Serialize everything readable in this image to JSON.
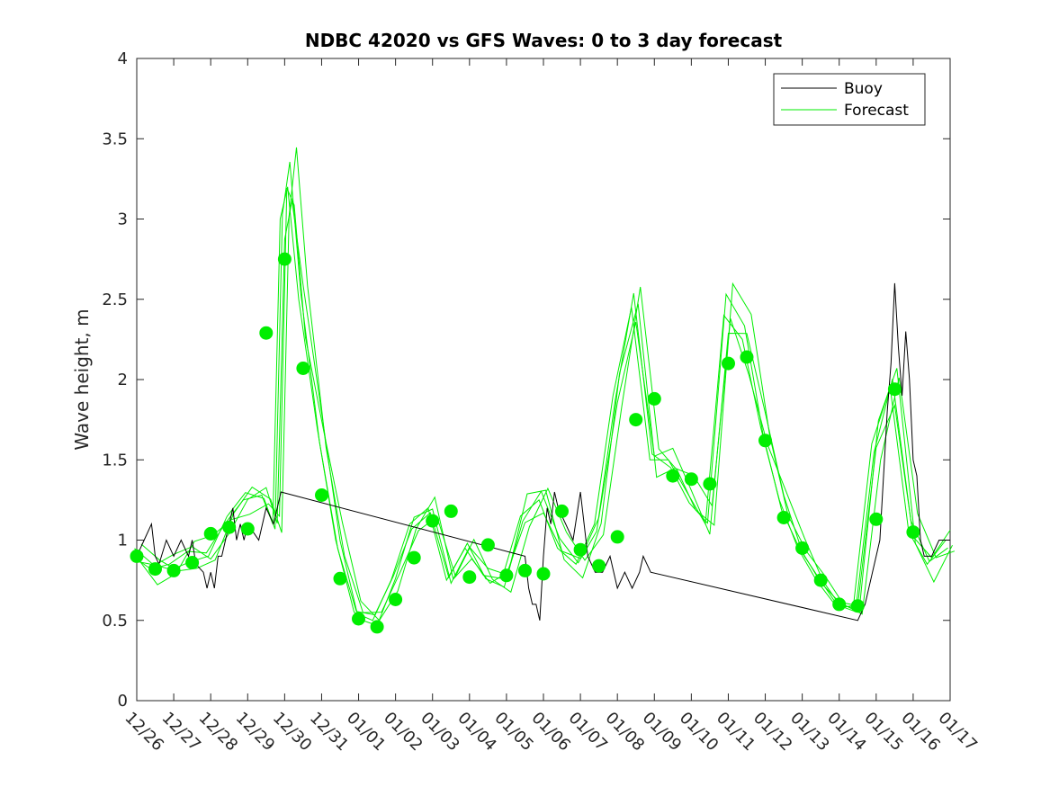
{
  "chart_data": {
    "type": "line",
    "title": "NDBC 42020 vs GFS Waves: 0 to 3 day forecast",
    "xlabel": "",
    "ylabel": "Wave height, m",
    "x_unit": "days since 12/26",
    "xlim": [
      0,
      22
    ],
    "ylim": [
      0,
      4
    ],
    "yticks": [
      0,
      0.5,
      1,
      1.5,
      2,
      2.5,
      3,
      3.5,
      4
    ],
    "ytick_labels": [
      "0",
      "0.5",
      "1",
      "1.5",
      "2",
      "2.5",
      "3",
      "3.5",
      "4"
    ],
    "xtick_labels": [
      "12/26",
      "12/27",
      "12/28",
      "12/29",
      "12/30",
      "12/31",
      "01/01",
      "01/02",
      "01/03",
      "01/04",
      "01/05",
      "01/06",
      "01/07",
      "01/08",
      "01/09",
      "01/10",
      "01/11",
      "01/12",
      "01/13",
      "01/14",
      "01/15",
      "01/16",
      "01/17"
    ],
    "colors": {
      "buoy": "#000000",
      "forecast": "#00ee00",
      "axes": "#262626"
    },
    "legend": {
      "location": "top-right",
      "entries": [
        "Buoy",
        "Forecast"
      ]
    },
    "series": [
      {
        "name": "Buoy",
        "x": [
          0,
          0.2,
          0.4,
          0.5,
          0.6,
          0.8,
          1.0,
          1.2,
          1.4,
          1.5,
          1.6,
          1.8,
          1.9,
          2.0,
          2.1,
          2.2,
          2.3,
          2.4,
          2.5,
          2.6,
          2.7,
          2.8,
          2.9,
          3.0,
          3.3,
          3.5,
          3.7,
          3.9,
          10.5,
          10.6,
          10.7,
          10.8,
          10.9,
          11.0,
          11.1,
          11.2,
          11.3,
          11.4,
          11.6,
          11.8,
          12.0,
          12.2,
          12.4,
          12.6,
          12.8,
          13.0,
          13.2,
          13.4,
          13.6,
          13.7,
          13.9,
          19.5,
          19.7,
          19.9,
          20.1,
          20.3,
          20.4,
          20.5,
          20.6,
          20.7,
          20.8,
          20.9,
          21.0,
          21.1,
          21.2,
          21.3,
          21.5,
          21.7,
          22.0
        ],
        "y": [
          0.9,
          1.0,
          1.1,
          0.9,
          0.85,
          1.0,
          0.9,
          1.0,
          0.9,
          1.0,
          0.85,
          0.8,
          0.7,
          0.8,
          0.7,
          0.9,
          0.9,
          1.0,
          1.1,
          1.2,
          1.0,
          1.1,
          1.0,
          1.1,
          1.0,
          1.2,
          1.1,
          1.3,
          0.9,
          0.7,
          0.6,
          0.6,
          0.5,
          0.9,
          1.2,
          1.1,
          1.3,
          1.2,
          1.1,
          1.0,
          1.3,
          0.9,
          0.8,
          0.8,
          0.9,
          0.7,
          0.8,
          0.7,
          0.8,
          0.9,
          0.8,
          0.5,
          0.6,
          0.8,
          1.0,
          1.8,
          2.1,
          2.6,
          2.2,
          1.9,
          2.3,
          2.0,
          1.5,
          1.4,
          1.0,
          0.9,
          0.9,
          1.0,
          1.0
        ]
      },
      {
        "name": "Forecast",
        "x": [
          0,
          0.5,
          1,
          1.5,
          2,
          2.5,
          3,
          3.5,
          3.8,
          4.0,
          4.2,
          4.5,
          5.0,
          5.5,
          6.0,
          6.5,
          7.0,
          7.5,
          8.0,
          8.5,
          9.0,
          9.5,
          10.0,
          10.5,
          11.0,
          11.5,
          12.0,
          12.5,
          13.0,
          13.5,
          14.0,
          14.5,
          15.0,
          15.5,
          16.0,
          16.5,
          17.0,
          17.5,
          18.0,
          18.5,
          19.0,
          19.5,
          20.0,
          20.5,
          21.0,
          21.5,
          22.0
        ],
        "y": [
          0.9,
          0.82,
          0.85,
          0.93,
          0.92,
          1.1,
          1.25,
          1.28,
          1.1,
          3.0,
          3.2,
          2.5,
          1.7,
          1.0,
          0.55,
          0.5,
          0.75,
          1.1,
          1.2,
          0.75,
          0.95,
          0.78,
          0.76,
          1.15,
          1.25,
          0.95,
          0.85,
          1.1,
          1.9,
          2.45,
          1.5,
          1.5,
          1.3,
          1.1,
          2.4,
          2.25,
          1.7,
          1.25,
          0.95,
          0.75,
          0.6,
          0.58,
          1.6,
          1.95,
          1.05,
          0.85,
          1.0
        ]
      },
      {
        "name": "Forecast markers",
        "x": [
          0,
          0.5,
          1,
          1.5,
          2,
          2.5,
          3,
          3.5,
          4,
          4.5,
          5,
          5.5,
          6,
          6.5,
          7,
          7.5,
          8,
          8.5,
          9,
          9.5,
          10,
          10.5,
          11,
          11.5,
          12,
          12.5,
          13,
          13.5,
          14,
          14.5,
          15,
          15.5,
          16,
          16.5,
          17,
          17.5,
          18,
          18.5,
          19,
          19.5,
          20,
          20.5,
          21
        ],
        "y": [
          0.9,
          0.82,
          0.81,
          0.86,
          1.04,
          1.08,
          1.07,
          2.29,
          2.75,
          2.07,
          1.28,
          0.76,
          0.51,
          0.46,
          0.63,
          0.89,
          1.12,
          1.18,
          0.77,
          0.97,
          0.78,
          0.81,
          0.79,
          1.18,
          0.94,
          0.84,
          1.02,
          1.75,
          1.88,
          1.4,
          1.38,
          1.35,
          2.1,
          2.14,
          1.62,
          1.14,
          0.95,
          0.75,
          0.6,
          0.59,
          1.13,
          1.94,
          1.05
        ]
      }
    ]
  }
}
